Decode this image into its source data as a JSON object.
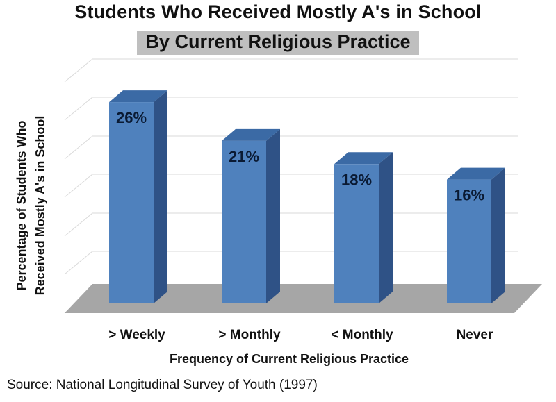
{
  "chart_data": {
    "type": "bar",
    "title": "Students Who Received Mostly A's in School",
    "subtitle": "By Current Religious Practice",
    "categories": [
      "> Weekly",
      "> Monthly",
      "< Monthly",
      "Never"
    ],
    "values": [
      26,
      21,
      18,
      16
    ],
    "data_labels": [
      "26%",
      "21%",
      "18%",
      "16%"
    ],
    "xlabel": "Frequency of Current Religious Practice",
    "ylabel_lines": [
      "Percentage of Students Who",
      "Received Mostly A's in School"
    ],
    "ylim": [
      0,
      35
    ],
    "grid": true,
    "three_d": true,
    "colors": {
      "bar_front": "#4f81bd",
      "bar_side": "#2f5286",
      "bar_top": "#3b6aa5",
      "floor": "#a6a6a6",
      "grid": "#d9d9d9"
    }
  },
  "source": "Source:  National Longitudinal Survey of Youth (1997)"
}
